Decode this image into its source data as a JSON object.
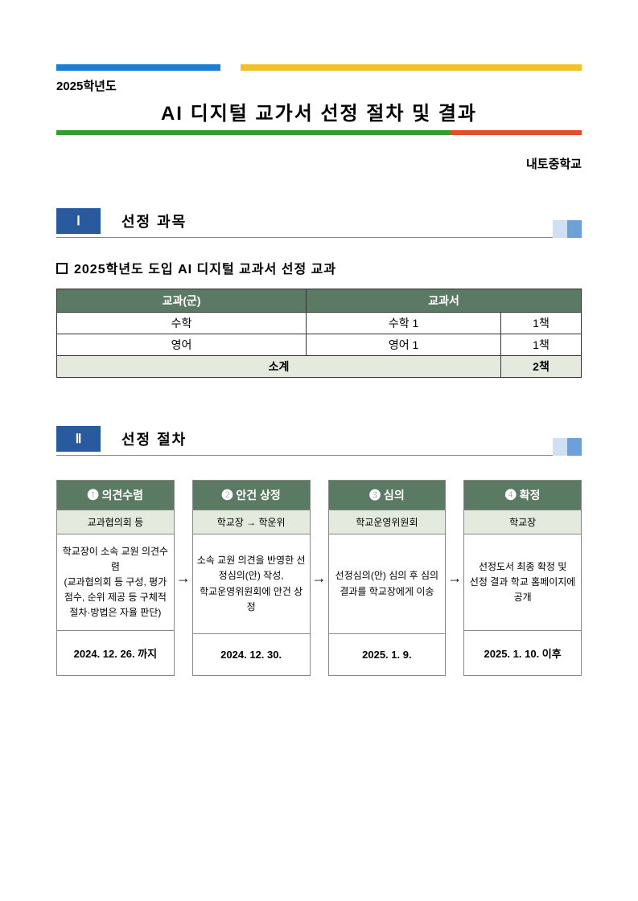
{
  "top_stripe_colors": [
    "#1a7fd4",
    "#ffffff",
    "#f2c028"
  ],
  "bottom_stripe_colors": [
    "#2fa030",
    "#e2502a"
  ],
  "year_label": "2025학년도",
  "main_title": "AI 디지털 교가서 선정 절차 및 결과",
  "school_name": "내토중학교",
  "section1": {
    "badge": "Ⅰ",
    "title": "선정 과목"
  },
  "subsection1_title": "2025학년도 도입 AI 디지털 교과서 선정 교과",
  "subjects_table": {
    "headers": {
      "col1": "교과(군)",
      "col2": "교과서"
    },
    "rows": [
      {
        "subject": "수학",
        "book": "수학 1",
        "count": "1책"
      },
      {
        "subject": "영어",
        "book": "영어 1",
        "count": "1책"
      }
    ],
    "subtotal": {
      "label": "소계",
      "value": "2책"
    }
  },
  "section2": {
    "badge": "Ⅱ",
    "title": "선정 절차"
  },
  "flow": [
    {
      "title": "❶ 의견수렴",
      "sub": "교과협의회 등",
      "body": "학교장이 소속 교원 의견수렴\n(교과협의회 등 구성, 평가점수, 순위 제공 등 구체적 절차·방법은 자율 판단)",
      "date": "2024. 12. 26. 까지"
    },
    {
      "title": "❷ 안건 상정",
      "sub": "학교장 → 학운위",
      "body": "소속 교원 의견을 반영한 선정심의(안) 작성,\n학교운영위원회에 안건 상정",
      "date": "2024. 12. 30."
    },
    {
      "title": "❸ 심의",
      "sub": "학교운영위원회",
      "body": "선정심의(안) 심의 후 심의 결과를 학교장에게 이송",
      "date": "2025. 1. 9."
    },
    {
      "title": "❹ 확정",
      "sub": "학교장",
      "body": "선정도서 최종 확정 및\n선정 결과 학교 홈페이지에 공개",
      "date": "2025. 1. 10. 이후"
    }
  ],
  "arrow_glyph": "→",
  "section_accent": {
    "badge_bg": "#2a5a9e",
    "right_block1": "#cfe0f3",
    "right_block2": "#6ea0d8",
    "table_header_bg": "#5b7a63",
    "table_subtotal_bg": "#e4eadd"
  }
}
